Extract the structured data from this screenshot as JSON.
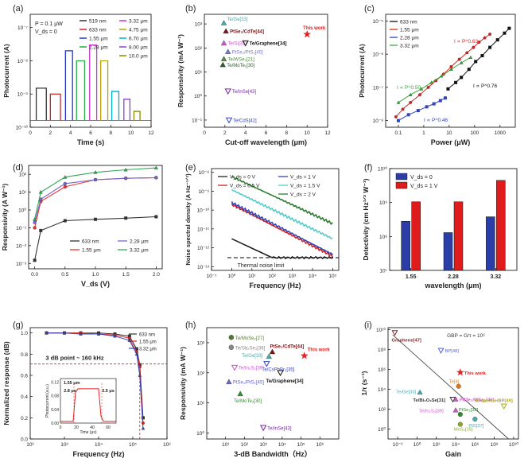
{
  "chart_data": [
    {
      "panel": "(a)",
      "type": "bar",
      "title": "",
      "xlabel": "Time (s)",
      "ylabel": "Photocurrent (A)",
      "xlim": [
        0,
        12
      ],
      "ylim_log10": [
        -10,
        -6.6
      ],
      "scale": "log-y",
      "xticks": [
        "0",
        "2",
        "4",
        "6",
        "8",
        "10",
        "12"
      ],
      "yticks": [
        "10⁻¹⁰",
        "10⁻⁹",
        "10⁻⁸",
        "10⁻⁷"
      ],
      "annotations": [
        "P = 0.1 μW",
        "V_ds = 0"
      ],
      "legend_cols": [
        [
          {
            "name": "519 nm",
            "color": "#333333"
          },
          {
            "name": "633 nm",
            "color": "#cc2222"
          },
          {
            "name": "1.55 μm",
            "color": "#2233cc"
          },
          {
            "name": "2.28 μm",
            "color": "#22aa44"
          }
        ],
        [
          {
            "name": "3.32 μm",
            "color": "#cc33cc"
          },
          {
            "name": "4.75 μm",
            "color": "#b8a000"
          },
          {
            "name": "6.70 μm",
            "color": "#00aacc"
          },
          {
            "name": "8.00 μm",
            "color": "#8844cc"
          },
          {
            "name": "10.0 μm",
            "color": "#888800"
          }
        ]
      ],
      "pulses": [
        {
          "start": 0.6,
          "end": 1.6,
          "value": 1.5e-09,
          "color": "#333333"
        },
        {
          "start": 2.0,
          "end": 3.0,
          "value": 1e-09,
          "color": "#cc2222"
        },
        {
          "start": 3.5,
          "end": 4.2,
          "value": 2e-08,
          "color": "#2233cc"
        },
        {
          "start": 4.6,
          "end": 5.4,
          "value": 1e-08,
          "color": "#22aa44"
        },
        {
          "start": 5.9,
          "end": 6.6,
          "value": 3e-08,
          "color": "#cc33cc"
        },
        {
          "start": 7.0,
          "end": 7.7,
          "value": 1e-08,
          "color": "#b8a000"
        },
        {
          "start": 8.1,
          "end": 8.8,
          "value": 1.2e-09,
          "color": "#00aacc"
        },
        {
          "start": 9.3,
          "end": 9.9,
          "value": 7e-10,
          "color": "#8844cc"
        },
        {
          "start": 10.3,
          "end": 10.9,
          "value": 3e-10,
          "color": "#888800"
        }
      ],
      "baseline": 1.6e-10
    },
    {
      "panel": "(b)",
      "type": "scatter",
      "xlabel": "Cut-off wavelength (μm)",
      "ylabel": "Responsivity (mA W⁻¹)",
      "xlim": [
        0,
        12
      ],
      "ylim_log10": [
        -1.3,
        3.4
      ],
      "xticks": [
        "0",
        "2",
        "4",
        "6",
        "8",
        "10",
        "12"
      ],
      "yticks": [
        "10⁻¹",
        "10⁰",
        "10¹",
        "10²",
        "10³"
      ],
      "points": [
        {
          "x": 1.9,
          "y": 1100,
          "label": "Te/Ge",
          "ref": "[33]",
          "color": "#44aaaa",
          "marker": "tri-up"
        },
        {
          "x": 2.1,
          "y": 500,
          "label": "PtSe₂/CdTe",
          "ref": "[44]",
          "color": "#7a1515",
          "marker": "tri-up"
        },
        {
          "x": 1.9,
          "y": 160,
          "label": "Te/Si",
          "ref": "[32]",
          "color": "#cc55cc",
          "marker": "tri-up"
        },
        {
          "x": 2.3,
          "y": 70,
          "label": "PtSe₂/PtS₂",
          "ref": "[45]",
          "color": "#7777cc",
          "marker": "tri-up"
        },
        {
          "x": 1.9,
          "y": 35,
          "label": "Te/WSe₂",
          "ref": "[21]",
          "color": "#558844",
          "marker": "tri-up"
        },
        {
          "x": 1.8,
          "y": 20,
          "label": "Te/MoTe₂",
          "ref": "[30]",
          "color": "#2e5e2e",
          "marker": "tri-up"
        },
        {
          "x": 4.0,
          "y": 160,
          "label": "Te/Graphene",
          "ref": "[34]",
          "color": "#111111",
          "marker": "tri-down"
        },
        {
          "x": 2.3,
          "y": 1.6,
          "label": "Te/InSe",
          "ref": "[43]",
          "color": "#7722aa",
          "marker": "tri-down"
        },
        {
          "x": 2.4,
          "y": 0.1,
          "label": "Te/CdS",
          "ref": "[42]",
          "color": "#3344bb",
          "marker": "tri-down"
        },
        {
          "x": 10.0,
          "y": 370,
          "label": "This work",
          "ref": "",
          "color": "#e02020",
          "marker": "star"
        }
      ]
    },
    {
      "panel": "(c)",
      "type": "line",
      "xlabel": "Power (μW)",
      "ylabel": "Photocurrent (A)",
      "xlim_log10": [
        -1.5,
        3.6
      ],
      "ylim_log10": [
        -8.2,
        -4.8
      ],
      "scale": "log-log",
      "xticks": [
        "0.1",
        "1",
        "10",
        "100",
        "1000"
      ],
      "yticks": [
        "10⁻⁸",
        "10⁻⁷",
        "10⁻⁶",
        "10⁻⁵"
      ],
      "series": [
        {
          "name": "633 nm",
          "color": "#111111",
          "exponent": "I ∝ P^0.76",
          "x": [
            9,
            18,
            30,
            60,
            110,
            200,
            400,
            800,
            1500,
            2300
          ],
          "y": [
            9e-08,
            1.4e-07,
            2e-07,
            3.5e-07,
            6e-07,
            9e-07,
            1.6e-06,
            2.7e-06,
            4.3e-06,
            6e-06
          ]
        },
        {
          "name": "1.55 μm",
          "color": "#dd2222",
          "exponent": "I ∝ P^0.63",
          "x": [
            0.08,
            0.15,
            0.3,
            0.7,
            1.5,
            3,
            6,
            12,
            25,
            50,
            90,
            150,
            250,
            400
          ],
          "y": [
            1.3e-08,
            2.2e-08,
            3.5e-08,
            6e-08,
            1e-07,
            1.6e-07,
            2.5e-07,
            4.2e-07,
            7e-07,
            1.1e-06,
            1.6e-06,
            2.3e-06,
            3.1e-06,
            4e-06
          ]
        },
        {
          "name": "2.28 μm",
          "color": "#3344bb",
          "exponent": "I ∝ P^0.46",
          "x": [
            0.1,
            0.25,
            0.6,
            1.3,
            2.5,
            4.5,
            7
          ],
          "y": [
            1e-08,
            1.5e-08,
            2e-08,
            2.6e-08,
            3.2e-08,
            4e-08,
            4.8e-08
          ]
        },
        {
          "name": "3.32 μm",
          "color": "#33aa33",
          "exponent": "I ∝ P^0.50",
          "x": [
            0.1,
            0.3,
            0.8,
            2,
            5,
            12,
            30,
            70
          ],
          "y": [
            3.5e-08,
            6e-08,
            9e-08,
            1.4e-07,
            2.2e-07,
            3.5e-07,
            5.5e-07,
            8e-07
          ]
        }
      ]
    },
    {
      "panel": "(d)",
      "type": "line",
      "xlabel": "V_ds (V)",
      "ylabel": "Responsivity (A W⁻¹)",
      "xlim": [
        -0.1,
        2.1
      ],
      "ylim_log10": [
        -3.3,
        2.5
      ],
      "scale": "log-y",
      "xticks": [
        "0.0",
        "0.5",
        "1.0",
        "1.5",
        "2.0"
      ],
      "yticks": [
        "10⁻³",
        "10⁻²",
        "10⁻¹",
        "10⁰",
        "10¹",
        "10²"
      ],
      "series": [
        {
          "name": "633 nm",
          "color": "#333333",
          "x": [
            0,
            0.1,
            0.5,
            1.0,
            1.5,
            2.0
          ],
          "y": [
            0.0015,
            0.07,
            0.25,
            0.3,
            0.35,
            0.42
          ]
        },
        {
          "name": "1.55 μm",
          "color": "#ee3333",
          "x": [
            0,
            0.1,
            0.5,
            1.0,
            1.5,
            2.0
          ],
          "y": [
            0.1,
            3,
            20,
            50,
            60,
            65
          ]
        },
        {
          "name": "2.28 μm",
          "color": "#7766cc",
          "x": [
            0,
            0.1,
            0.5,
            1.0,
            1.5,
            2.0
          ],
          "y": [
            0.2,
            4,
            30,
            50,
            60,
            65
          ]
        },
        {
          "name": "3.32 μm",
          "color": "#33aa55",
          "x": [
            0,
            0.1,
            0.5,
            1.0,
            1.5,
            2.0
          ],
          "y": [
            0.3,
            10,
            70,
            130,
            180,
            230
          ]
        }
      ]
    },
    {
      "panel": "(e)",
      "type": "line",
      "xlabel": "Frequency (Hz)",
      "ylabel": "Noise spectral density (A Hz⁻¹ᐟ²)",
      "xlim_log10": [
        -1,
        5.3
      ],
      "ylim_log10": [
        -13.2,
        -7.8
      ],
      "scale": "log-log",
      "xticks": [
        "10⁻¹",
        "10⁰",
        "10¹",
        "10²",
        "10³",
        "10⁴",
        "10⁵"
      ],
      "yticks": [
        "10⁻¹³",
        "10⁻¹²",
        "10⁻¹¹",
        "10⁻¹⁰",
        "10⁻⁹",
        "10⁻⁸"
      ],
      "annotation": "Thermal noise limit",
      "thermal_limit": 3e-13,
      "series": [
        {
          "name": "V_ds = 0 V",
          "color": "#222222",
          "start": 3e-12,
          "end": 3e-13,
          "slope": -0.5
        },
        {
          "name": "V_ds = 0.5 V",
          "color": "#cc2222",
          "start": 2e-10,
          "slope": -0.55
        },
        {
          "name": "V_ds = 1 V",
          "color": "#3344bb",
          "start": 2.5e-10,
          "slope": -0.55
        },
        {
          "name": "V_ds = 1.5 V",
          "color": "#55cccc",
          "start": 1.2e-09,
          "slope": -0.52
        },
        {
          "name": "V_ds = 2 V",
          "color": "#2e7d32",
          "start": 6e-09,
          "slope": -0.5
        }
      ]
    },
    {
      "panel": "(f)",
      "type": "bar",
      "xlabel": "wavelength (μm)",
      "ylabel": "Detectivity (cm Hz¹ᐟ² W⁻¹)",
      "ylim_log10": [
        7,
        10
      ],
      "scale": "log-y",
      "yticks": [
        "10⁷",
        "10⁸",
        "10⁹",
        "10¹⁰"
      ],
      "categories": [
        "1.55",
        "2.28",
        "3.32"
      ],
      "series": [
        {
          "name": "V_ds = 0",
          "color": "#2b3ea8",
          "values": [
            280000000.0,
            130000000.0,
            380000000.0
          ]
        },
        {
          "name": "V_ds = 1 V",
          "color": "#e01b1b",
          "values": [
            1050000000.0,
            1050000000.0,
            4500000000.0
          ]
        }
      ]
    },
    {
      "panel": "(g)",
      "type": "line",
      "xlabel": "Frequency (Hz)",
      "ylabel": "Normalized response (dB)",
      "xlim_log10": [
        2,
        6
      ],
      "ylim": [
        0.0,
        1.05
      ],
      "scale": "log-x",
      "xticks": [
        "10²",
        "10³",
        "10⁴",
        "10⁵",
        "10⁶"
      ],
      "yticks": [
        "0.0",
        "0.2",
        "0.4",
        "0.6",
        "0.8",
        "1.0"
      ],
      "annotation": "3 dB point ~ 160 kHz",
      "three_db_level": 0.707,
      "series": [
        {
          "name": "633 nm",
          "color": "#333333",
          "x": [
            300,
            1000,
            3000,
            10000,
            30000,
            80000,
            130000,
            160000,
            200000
          ],
          "y": [
            1.0,
            1.0,
            1.0,
            1.0,
            0.99,
            0.97,
            0.85,
            0.7,
            0.2
          ]
        },
        {
          "name": "1.55 μm",
          "color": "#dd2222",
          "x": [
            300,
            1000,
            3000,
            10000,
            30000,
            80000,
            130000,
            160000,
            200000
          ],
          "y": [
            1.0,
            1.0,
            1.0,
            0.99,
            0.98,
            0.95,
            0.82,
            0.68,
            0.15
          ]
        },
        {
          "name": "3.32 μm",
          "color": "#3344bb",
          "x": [
            300,
            1000,
            3000,
            10000,
            30000,
            80000,
            130000,
            160000,
            200000
          ],
          "y": [
            1.0,
            1.0,
            0.99,
            0.99,
            0.97,
            0.93,
            0.8,
            0.6,
            0.1
          ]
        }
      ],
      "inset": {
        "ylabel": "Photocurrent (a.u.)",
        "xlabel": "Time (μs)",
        "xticks": [
          "0",
          "20",
          "40",
          "60"
        ],
        "yticks": [
          "0.00",
          "0.04",
          "0.08",
          "0.12"
        ],
        "annotations": [
          "1.55 μm",
          "2.8 μs",
          "2.5 μs"
        ]
      }
    },
    {
      "panel": "(h)",
      "type": "scatter",
      "xlabel": "3-dB Bandwidth（Hz）",
      "ylabel": "Responsivity (mA W⁻¹)",
      "xlim_log10": [
        0,
        7
      ],
      "ylim_log10": [
        -0.2,
        3.5
      ],
      "scale": "log-log",
      "xticks": [
        "10¹",
        "10²",
        "10³",
        "10⁴",
        "10⁵",
        "10⁶"
      ],
      "yticks": [
        "10⁰",
        "10¹",
        "10²",
        "10³"
      ],
      "points": [
        {
          "x": 20,
          "y": 1500,
          "label": "Te/MoSe₂",
          "ref": "[27]",
          "color": "#557733",
          "marker": "circle"
        },
        {
          "x": 20,
          "y": 700,
          "label": "Te/Sb₂Se₃",
          "ref": "[36]",
          "color": "#888888",
          "marker": "circle"
        },
        {
          "x": 3000,
          "y": 500,
          "label": "PtSe₂/CdTe",
          "ref": "[44]",
          "color": "#7a1515",
          "marker": "tri-up"
        },
        {
          "x": 2000,
          "y": 350,
          "label": "Te/Ge",
          "ref": "[33]",
          "color": "#44aaaa",
          "marker": "tri-up"
        },
        {
          "x": 1500,
          "y": 200,
          "label": "Te/CsPbBr₃",
          "ref": "[35]",
          "color": "#3344bb",
          "marker": "tri-down"
        },
        {
          "x": 30,
          "y": 150,
          "label": "Te/In₂S₃",
          "ref": "[39]",
          "color": "#cc55cc",
          "marker": "tri-down"
        },
        {
          "x": 15,
          "y": 50,
          "label": "PtSe₂/PtS₂",
          "ref": "[45]",
          "color": "#6666cc",
          "marker": "tri-up"
        },
        {
          "x": 60,
          "y": 20,
          "label": "Te/MoTe₂",
          "ref": "[30]",
          "color": "#2e8b2e",
          "marker": "tri-up"
        },
        {
          "x": 8000,
          "y": 100,
          "label": "Te/Graphene",
          "ref": "[34]",
          "color": "#111111",
          "marker": "tri-down"
        },
        {
          "x": 1000,
          "y": 1.5,
          "label": "Te/InSe",
          "ref": "[43]",
          "color": "#7722aa",
          "marker": "tri-down"
        },
        {
          "x": 150000,
          "y": 370,
          "label": "This work",
          "ref": "",
          "color": "#e02020",
          "marker": "star"
        }
      ]
    },
    {
      "panel": "(i)",
      "type": "scatter",
      "xlabel": "Gain",
      "ylabel": "1/τ (s⁻¹)",
      "xlim_log10": [
        -3,
        10.5
      ],
      "ylim_log10": [
        -1,
        10.2
      ],
      "scale": "log-log",
      "xticks": [
        "10⁻²",
        "10⁰",
        "10²",
        "10⁴",
        "10⁶",
        "10⁸",
        "10¹⁰"
      ],
      "yticks": [
        "10⁰",
        "10²",
        "10⁴",
        "10⁶",
        "10⁸",
        "10¹⁰"
      ],
      "annotation": "GBP = G/τ = 10⁶",
      "points": [
        {
          "x": 0.005,
          "y": 5000000000.0,
          "label": "Graphene",
          "ref": "[47]",
          "color": "#882222",
          "marker": "tri-down"
        },
        {
          "x": 300,
          "y": 80000000.0,
          "label": "BP",
          "ref": "[48]",
          "color": "#5566cc",
          "marker": "tri-down"
        },
        {
          "x": 30000,
          "y": 500000.0,
          "label": "This work",
          "ref": "",
          "color": "#e02020",
          "marker": "star"
        },
        {
          "x": 20000,
          "y": 20000.0,
          "label": "Te",
          "ref": "[4]",
          "color": "#dd7722",
          "marker": "circle"
        },
        {
          "x": 2,
          "y": 5000,
          "label": "Te/Ge",
          "ref": "[33]",
          "color": "#44aaaa",
          "marker": "tri-up"
        },
        {
          "x": 5000,
          "y": 1000,
          "label": "Te/Bi₂O₂Se",
          "ref": "[31]",
          "color": "#333333",
          "marker": "tri-down"
        },
        {
          "x": 10000,
          "y": 1000,
          "label": "PdTe₂/WSe₂",
          "ref": "[46]",
          "color": "#cc55cc",
          "marker": "tri-up"
        },
        {
          "x": 1000000000.0,
          "y": 200,
          "label": "Graphene/BP",
          "ref": "[49]",
          "color": "#aaaa22",
          "marker": "tri-down"
        },
        {
          "x": 10000,
          "y": 80,
          "label": "Te/In₂S₃",
          "ref": "[39]",
          "color": "#cc55cc",
          "marker": "tri-up"
        },
        {
          "x": 30000,
          "y": 30,
          "label": "PtSe₂",
          "ref": "[38]",
          "color": "#2e8b2e",
          "marker": "circle"
        },
        {
          "x": 1000000.0,
          "y": 10,
          "label": "PtS",
          "ref": "[37]",
          "color": "#44aaaa",
          "marker": "circle"
        },
        {
          "x": 30000,
          "y": 3,
          "label": "MoS₂",
          "ref": "[15]",
          "color": "#88aa22",
          "marker": "circle"
        }
      ]
    }
  ]
}
